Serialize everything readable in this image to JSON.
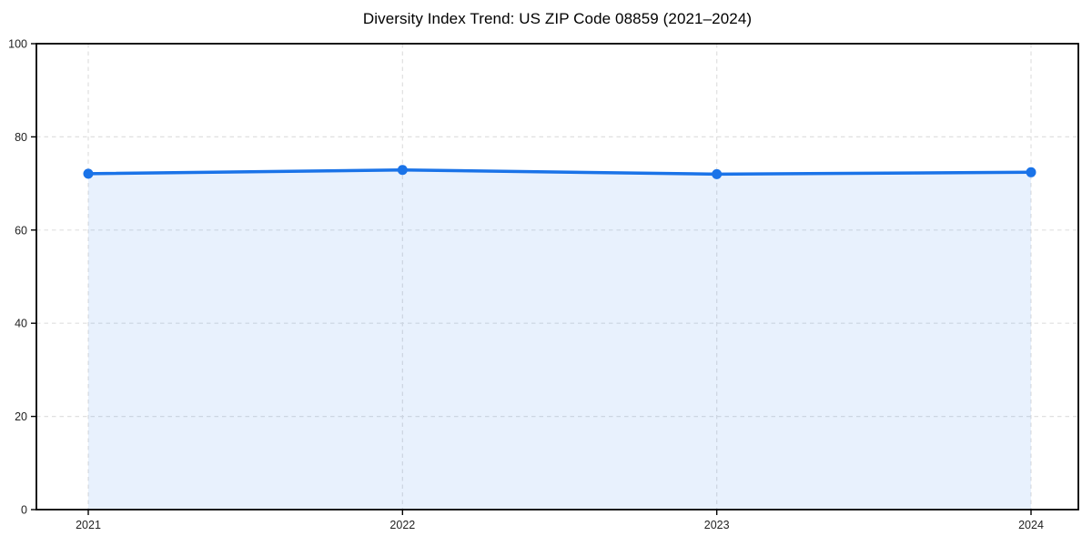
{
  "chart_data": {
    "type": "area",
    "title": "Diversity Index Trend: US ZIP Code 08859 (2021–2024)",
    "categories": [
      "2021",
      "2022",
      "2023",
      "2024"
    ],
    "x": [
      2021,
      2022,
      2023,
      2024
    ],
    "series": [
      {
        "name": "Diversity Index",
        "values": [
          72.1,
          72.9,
          72.0,
          72.4
        ]
      }
    ],
    "xlabel": "",
    "ylabel": "",
    "ylim": [
      0,
      100
    ],
    "yticks": [
      0,
      20,
      40,
      60,
      80,
      100
    ],
    "grid": true,
    "grid_style": "dashed",
    "legend": "none",
    "colors": {
      "line": "#1a73e8",
      "marker": "#1a73e8",
      "fill": "rgba(26,115,232,0.10)",
      "gridline": "#e0e0e0",
      "axis": "#000000",
      "tick_label": "#222222",
      "background": "#ffffff"
    }
  }
}
